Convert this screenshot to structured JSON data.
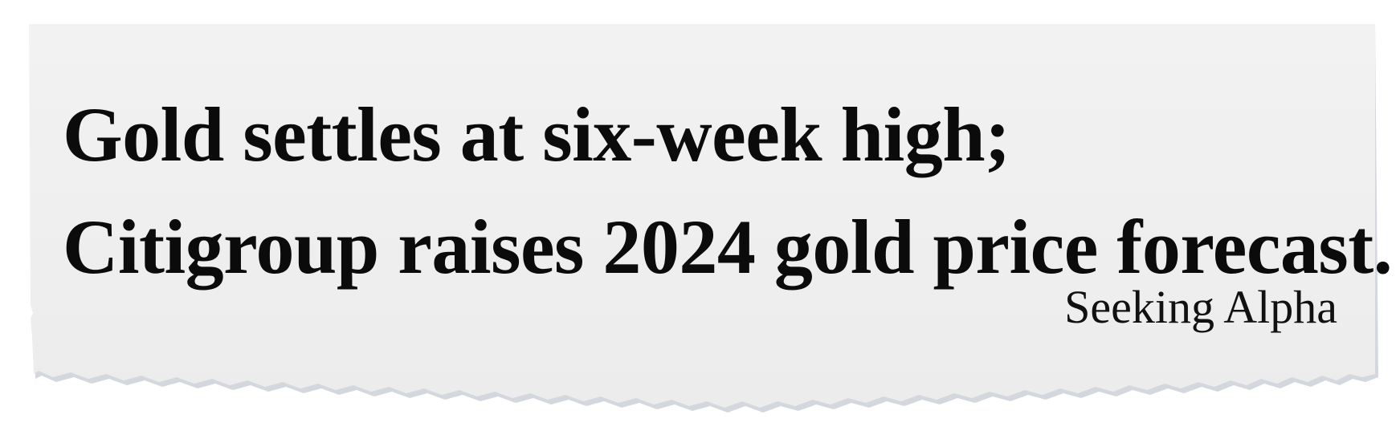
{
  "clipping": {
    "headline_line_1": "Gold settles at six-week high;",
    "headline_line_2": "Citigroup raises 2024 gold price forecast.",
    "source": "Seeking Alpha"
  },
  "colors": {
    "paper": "#efefef",
    "paper_edge": "#cfd3d9",
    "text": "#0b0b0b"
  }
}
